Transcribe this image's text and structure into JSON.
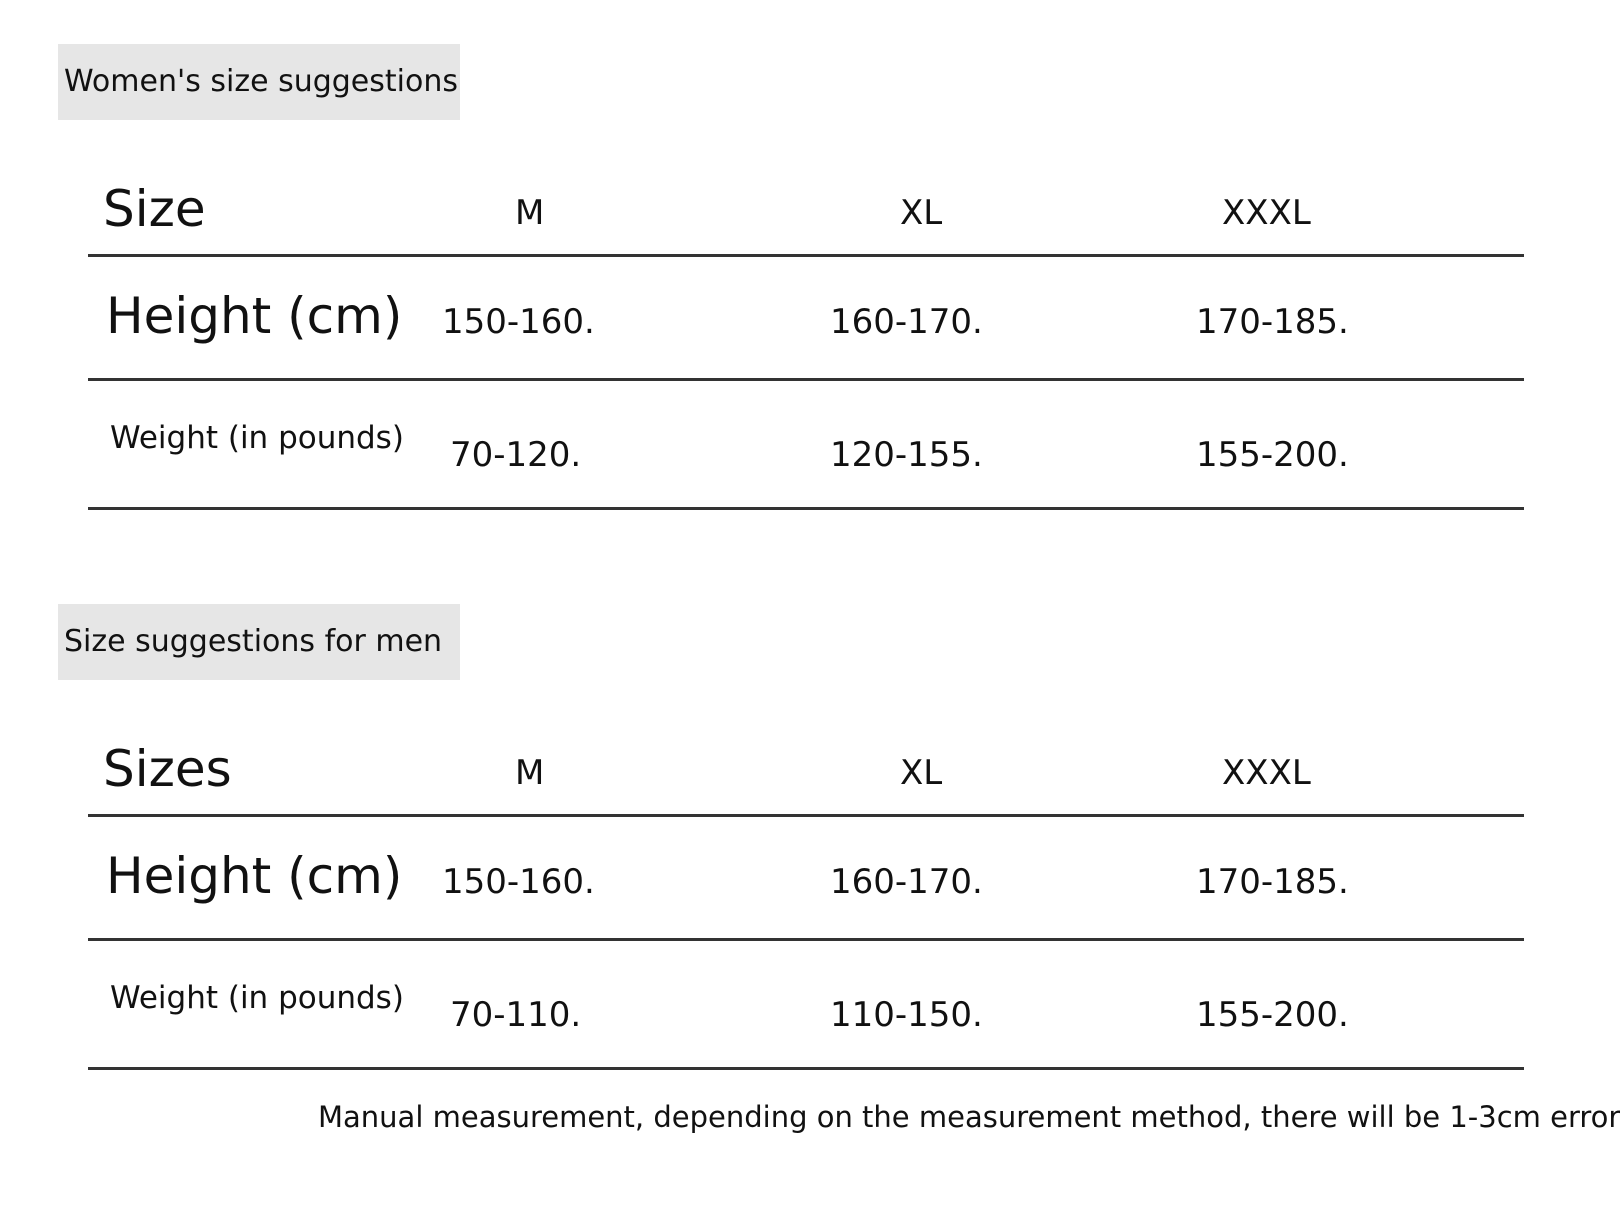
{
  "sections": [
    {
      "title": "Women's size suggestions",
      "table": {
        "header": [
          "Size",
          "M",
          "XL",
          "XXXL"
        ],
        "rows": [
          [
            "Height (cm)",
            "150-160.",
            "160-170.",
            "170-185."
          ],
          [
            "Weight (in pounds)",
            "70-120.",
            "120-155.",
            "155-200."
          ]
        ]
      }
    },
    {
      "title": "Size suggestions for men",
      "table": {
        "header": [
          "Sizes",
          "M",
          "XL",
          "XXXL"
        ],
        "rows": [
          [
            "Height (cm)",
            "150-160.",
            "160-170.",
            "170-185."
          ],
          [
            "Weight (in pounds)",
            "70-110.",
            "110-150.",
            "155-200."
          ]
        ]
      }
    }
  ],
  "note": "Manual measurement, depending on the measurement method, there will be 1-3cm error"
}
